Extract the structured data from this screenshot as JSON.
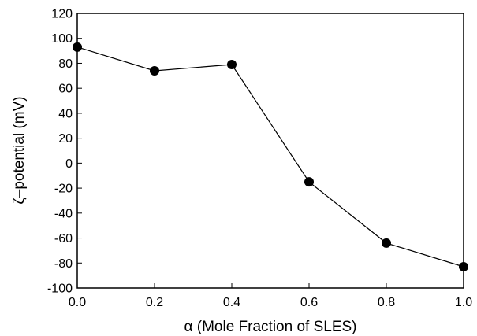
{
  "chart_data": {
    "type": "line",
    "title": "",
    "xlabel": "α (Mole Fraction of SLES)",
    "ylabel": "ζ–potential (mV)",
    "xlim": [
      0.0,
      1.0
    ],
    "ylim": [
      -100,
      120
    ],
    "xticks": [
      0.0,
      0.2,
      0.4,
      0.6,
      0.8,
      1.0
    ],
    "xtick_labels": [
      "0.0",
      "0.2",
      "0.4",
      "0.6",
      "0.8",
      "1.0"
    ],
    "yticks": [
      -100,
      -80,
      -60,
      -40,
      -20,
      0,
      20,
      40,
      60,
      80,
      100,
      120
    ],
    "ytick_labels": [
      "-100",
      "-80",
      "-60",
      "-40",
      "-20",
      "0",
      "20",
      "40",
      "60",
      "80",
      "100",
      "120"
    ],
    "grid": false,
    "legend": "none",
    "marker": "filled-circle",
    "color": "#000000",
    "series": [
      {
        "x": [
          0.0,
          0.2,
          0.4,
          0.6,
          0.8,
          1.0
        ],
        "y": [
          93,
          74,
          79,
          -15,
          -64,
          -83
        ]
      }
    ]
  }
}
